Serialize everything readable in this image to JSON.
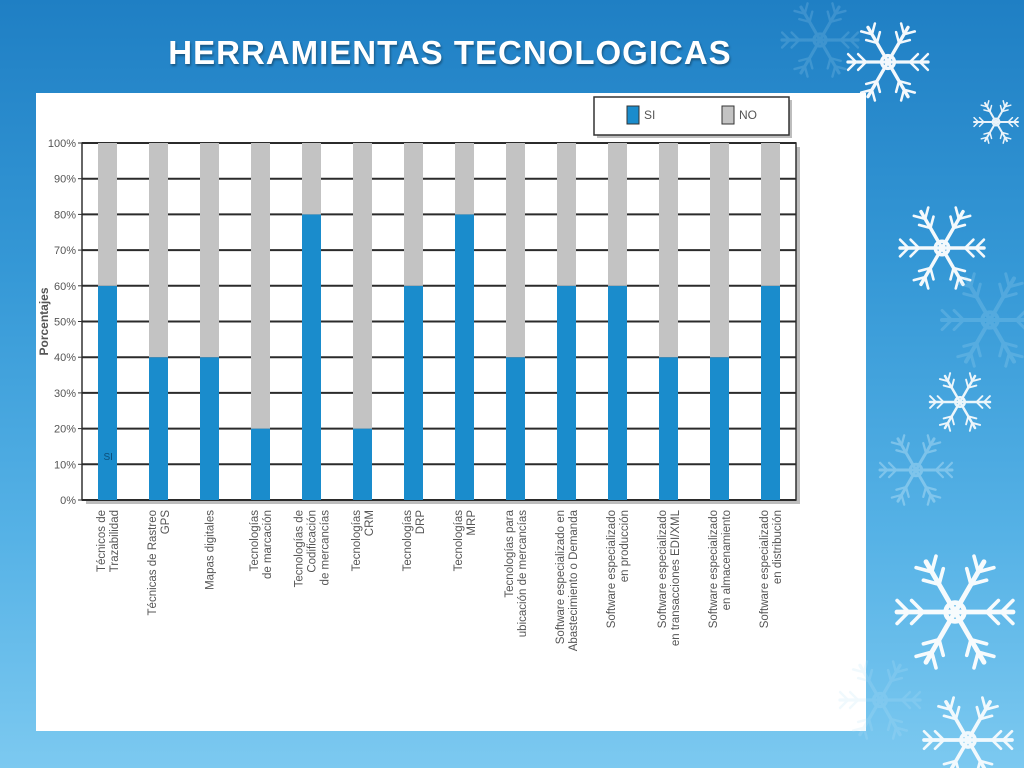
{
  "slide": {
    "title": "HERRAMIENTAS TECNOLOGICAS",
    "accent": "#1f7fc4"
  },
  "chart_data": {
    "type": "bar",
    "stacked": true,
    "percent": true,
    "ylabel": "Porcentajes",
    "xlabel": "",
    "ylim": [
      0,
      100
    ],
    "yticks": [
      "0%",
      "10%",
      "20%",
      "30%",
      "40%",
      "50%",
      "60%",
      "70%",
      "80%",
      "90%",
      "100%"
    ],
    "grid": true,
    "legend_position": "top-right",
    "categories": [
      [
        "Técnicos de",
        "Trazabilidad"
      ],
      [
        "Técnicas de Rastreo",
        "GPS"
      ],
      [
        "Mapas digitales"
      ],
      [
        "Tecnologías",
        "de marcación"
      ],
      [
        "Tecnologías de",
        "Codificación",
        "de mercancías"
      ],
      [
        "Tecnologías",
        "CRM"
      ],
      [
        "Tecnologías",
        "DRP"
      ],
      [
        "Tecnologías",
        "MRP"
      ],
      [
        "Tecnologías para",
        "ubicación de mercancías"
      ],
      [
        "Software especializado en",
        "Abastecimiento o Demanda"
      ],
      [
        "Software especializado",
        "en producción"
      ],
      [
        "Software especializado",
        "en transacciones EDI/XML"
      ],
      [
        "Software especializado",
        "en almacenamiento"
      ],
      [
        "Software especializado",
        "en distribución"
      ]
    ],
    "series": [
      {
        "name": "SI",
        "color": "#1a8ccc",
        "values": [
          60,
          40,
          40,
          20,
          80,
          20,
          60,
          80,
          40,
          60,
          60,
          40,
          40,
          60
        ]
      },
      {
        "name": "NO",
        "color": "#c3c3c3",
        "values": [
          40,
          60,
          60,
          80,
          20,
          80,
          40,
          20,
          60,
          40,
          40,
          60,
          60,
          40
        ]
      }
    ],
    "annotations": [
      {
        "category_index": 0,
        "text": "SI"
      }
    ]
  }
}
